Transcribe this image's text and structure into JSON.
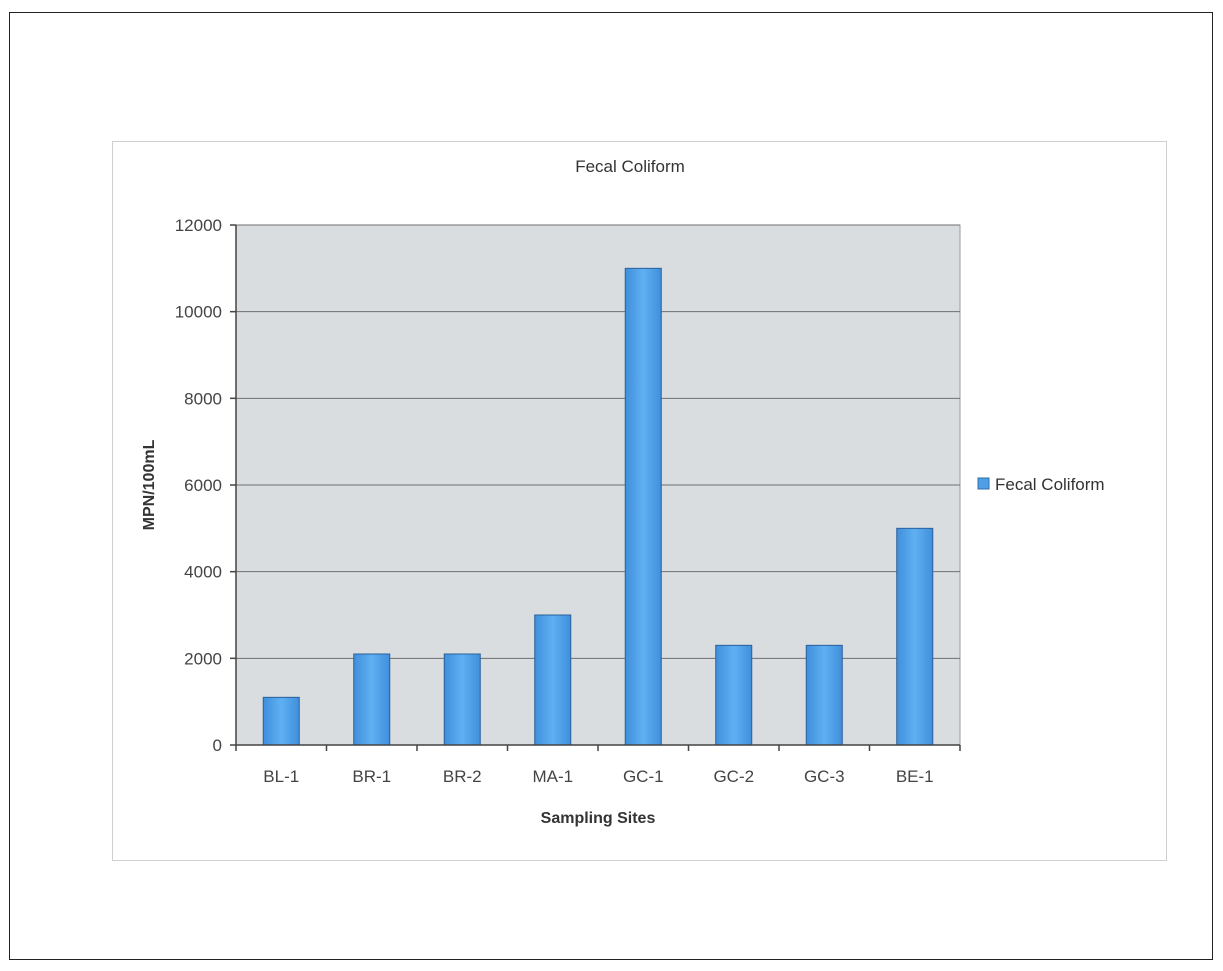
{
  "chart_data": {
    "type": "bar",
    "title": "Fecal Coliform",
    "xlabel": "Sampling Sites",
    "ylabel": "MPN/100mL",
    "categories": [
      "BL-1",
      "BR-1",
      "BR-2",
      "MA-1",
      "GC-1",
      "GC-2",
      "GC-3",
      "BE-1"
    ],
    "series": [
      {
        "name": "Fecal Coliform",
        "values": [
          1100,
          2100,
          2100,
          3000,
          11000,
          2300,
          2300,
          5000
        ],
        "color": "#4f9fe6"
      }
    ],
    "ylim": [
      0,
      12000
    ],
    "yticks": [
      "0",
      "2000",
      "4000",
      "6000",
      "8000",
      "10000",
      "12000"
    ],
    "grid": true,
    "legend": "right",
    "plot_background": "#d9dde0"
  }
}
